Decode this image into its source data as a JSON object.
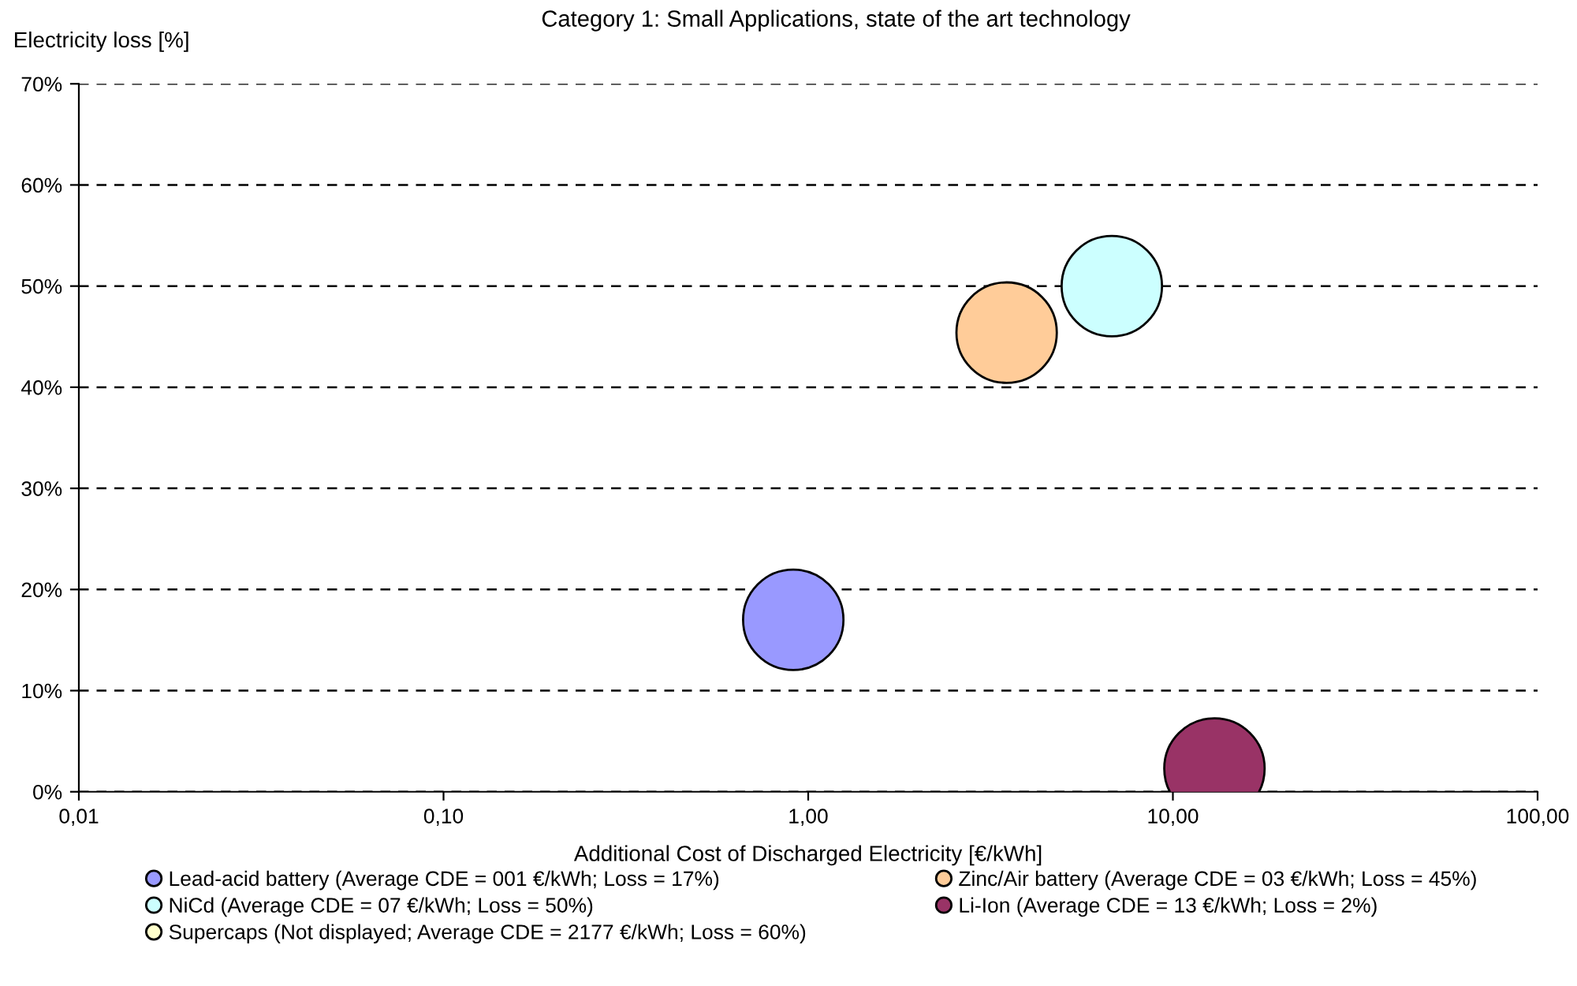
{
  "chart_data": {
    "type": "bubble",
    "title": "Category 1: Small Applications, state of the art technology",
    "xlabel": "Additional Cost of Discharged Electricity [€/kWh]",
    "ylabel": "Electricity loss [%]",
    "series": [
      {
        "name": "Lead-acid battery (Average CDE = 001 €/kWh; Loss = 17%)",
        "color": "#9999ff",
        "x": [
          0.91
        ],
        "values": [
          17
        ],
        "sizes": [
          1
        ]
      },
      {
        "name": "Zinc/Air battery (Average CDE = 03 €/kWh; Loss = 45%)",
        "color": "#ffcc99",
        "x": [
          3.5
        ],
        "values": [
          45.4
        ],
        "sizes": [
          1
        ]
      },
      {
        "name": "NiCd (Average CDE = 07 €/kWh; Loss = 50%)",
        "color": "#ccffff",
        "x": [
          6.8
        ],
        "values": [
          50
        ],
        "sizes": [
          1
        ]
      },
      {
        "name": "Li-Ion (Average CDE = 13 €/kWh; Loss = 2%)",
        "color": "#993366",
        "x": [
          13
        ],
        "values": [
          2.3
        ],
        "sizes": [
          1
        ]
      },
      {
        "name": "Supercaps (Not displayed; Average CDE = 2177 €/kWh; Loss = 60%)",
        "color": "#ffffcc"
      }
    ],
    "log": "x",
    "xlim": [
      0.01,
      100
    ],
    "xticks": [
      {
        "value": 0.01,
        "label": "0,01"
      },
      {
        "value": 0.1,
        "label": "0,10"
      },
      {
        "value": 1,
        "label": "1,00"
      },
      {
        "value": 10,
        "label": "10,00"
      },
      {
        "value": 100,
        "label": "100,00"
      }
    ],
    "ylim": [
      0,
      70
    ],
    "yticks": [
      {
        "value": 0,
        "label": "0%"
      },
      {
        "value": 10,
        "label": "10%"
      },
      {
        "value": 20,
        "label": "20%"
      },
      {
        "value": 30,
        "label": "30%"
      },
      {
        "value": 40,
        "label": "40%"
      },
      {
        "value": 50,
        "label": "50%"
      },
      {
        "value": 60,
        "label": "60%"
      },
      {
        "value": 70,
        "label": "70%"
      }
    ],
    "grid": "y",
    "line_style": "dashed",
    "legend": "bottom",
    "marker": "circle"
  }
}
